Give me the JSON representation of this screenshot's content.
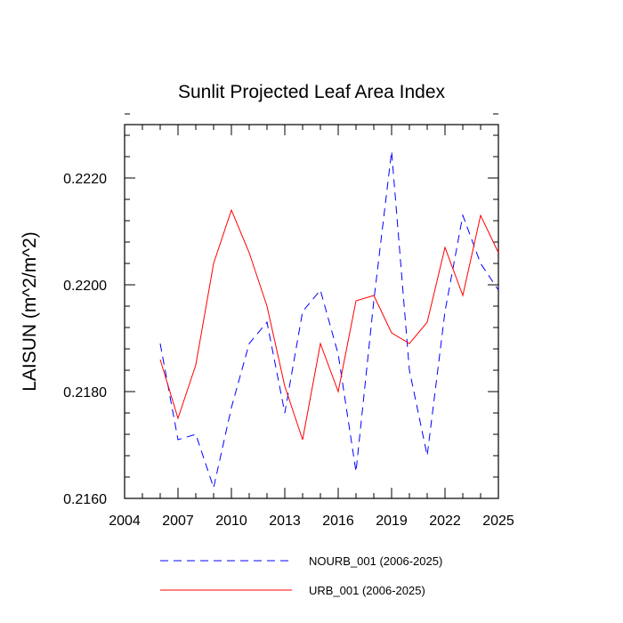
{
  "chart_data": {
    "type": "line",
    "title": "Sunlit Projected Leaf Area Index",
    "ylabel": "LAISUN  (m^2/m^2)",
    "xlabel": "",
    "xlim": [
      2004,
      2025
    ],
    "ylim": [
      0.216,
      0.223
    ],
    "x_ticks": [
      2004,
      2007,
      2010,
      2013,
      2016,
      2019,
      2022,
      2025
    ],
    "y_ticks": [
      0.216,
      0.218,
      0.22,
      0.222
    ],
    "y_tick_labels": [
      "0.2160",
      "0.2180",
      "0.2200",
      "0.2220"
    ],
    "x": [
      2006,
      2007,
      2008,
      2009,
      2010,
      2011,
      2012,
      2013,
      2014,
      2015,
      2016,
      2017,
      2018,
      2019,
      2020,
      2021,
      2022,
      2023,
      2024,
      2025
    ],
    "series": [
      {
        "name": "NOURB_001 (2006-2025)",
        "color": "#0000ff",
        "dash": "dashed",
        "values": [
          0.2189,
          0.2171,
          0.2172,
          0.2162,
          0.2177,
          0.2189,
          0.2193,
          0.2176,
          0.2195,
          0.2199,
          0.2187,
          0.2165,
          0.2197,
          0.2225,
          0.2184,
          0.2168,
          0.2195,
          0.2213,
          0.2204,
          0.2199
        ]
      },
      {
        "name": "URB_001 (2006-2025)",
        "color": "#ff0000",
        "dash": "solid",
        "values": [
          0.2186,
          0.2175,
          0.2185,
          0.2204,
          0.2214,
          0.2206,
          0.2196,
          0.2181,
          0.2171,
          0.2189,
          0.218,
          0.2197,
          0.2198,
          0.2191,
          0.2189,
          0.2193,
          0.2207,
          0.2198,
          0.2213,
          0.2206
        ]
      }
    ],
    "legend_position": "bottom"
  }
}
